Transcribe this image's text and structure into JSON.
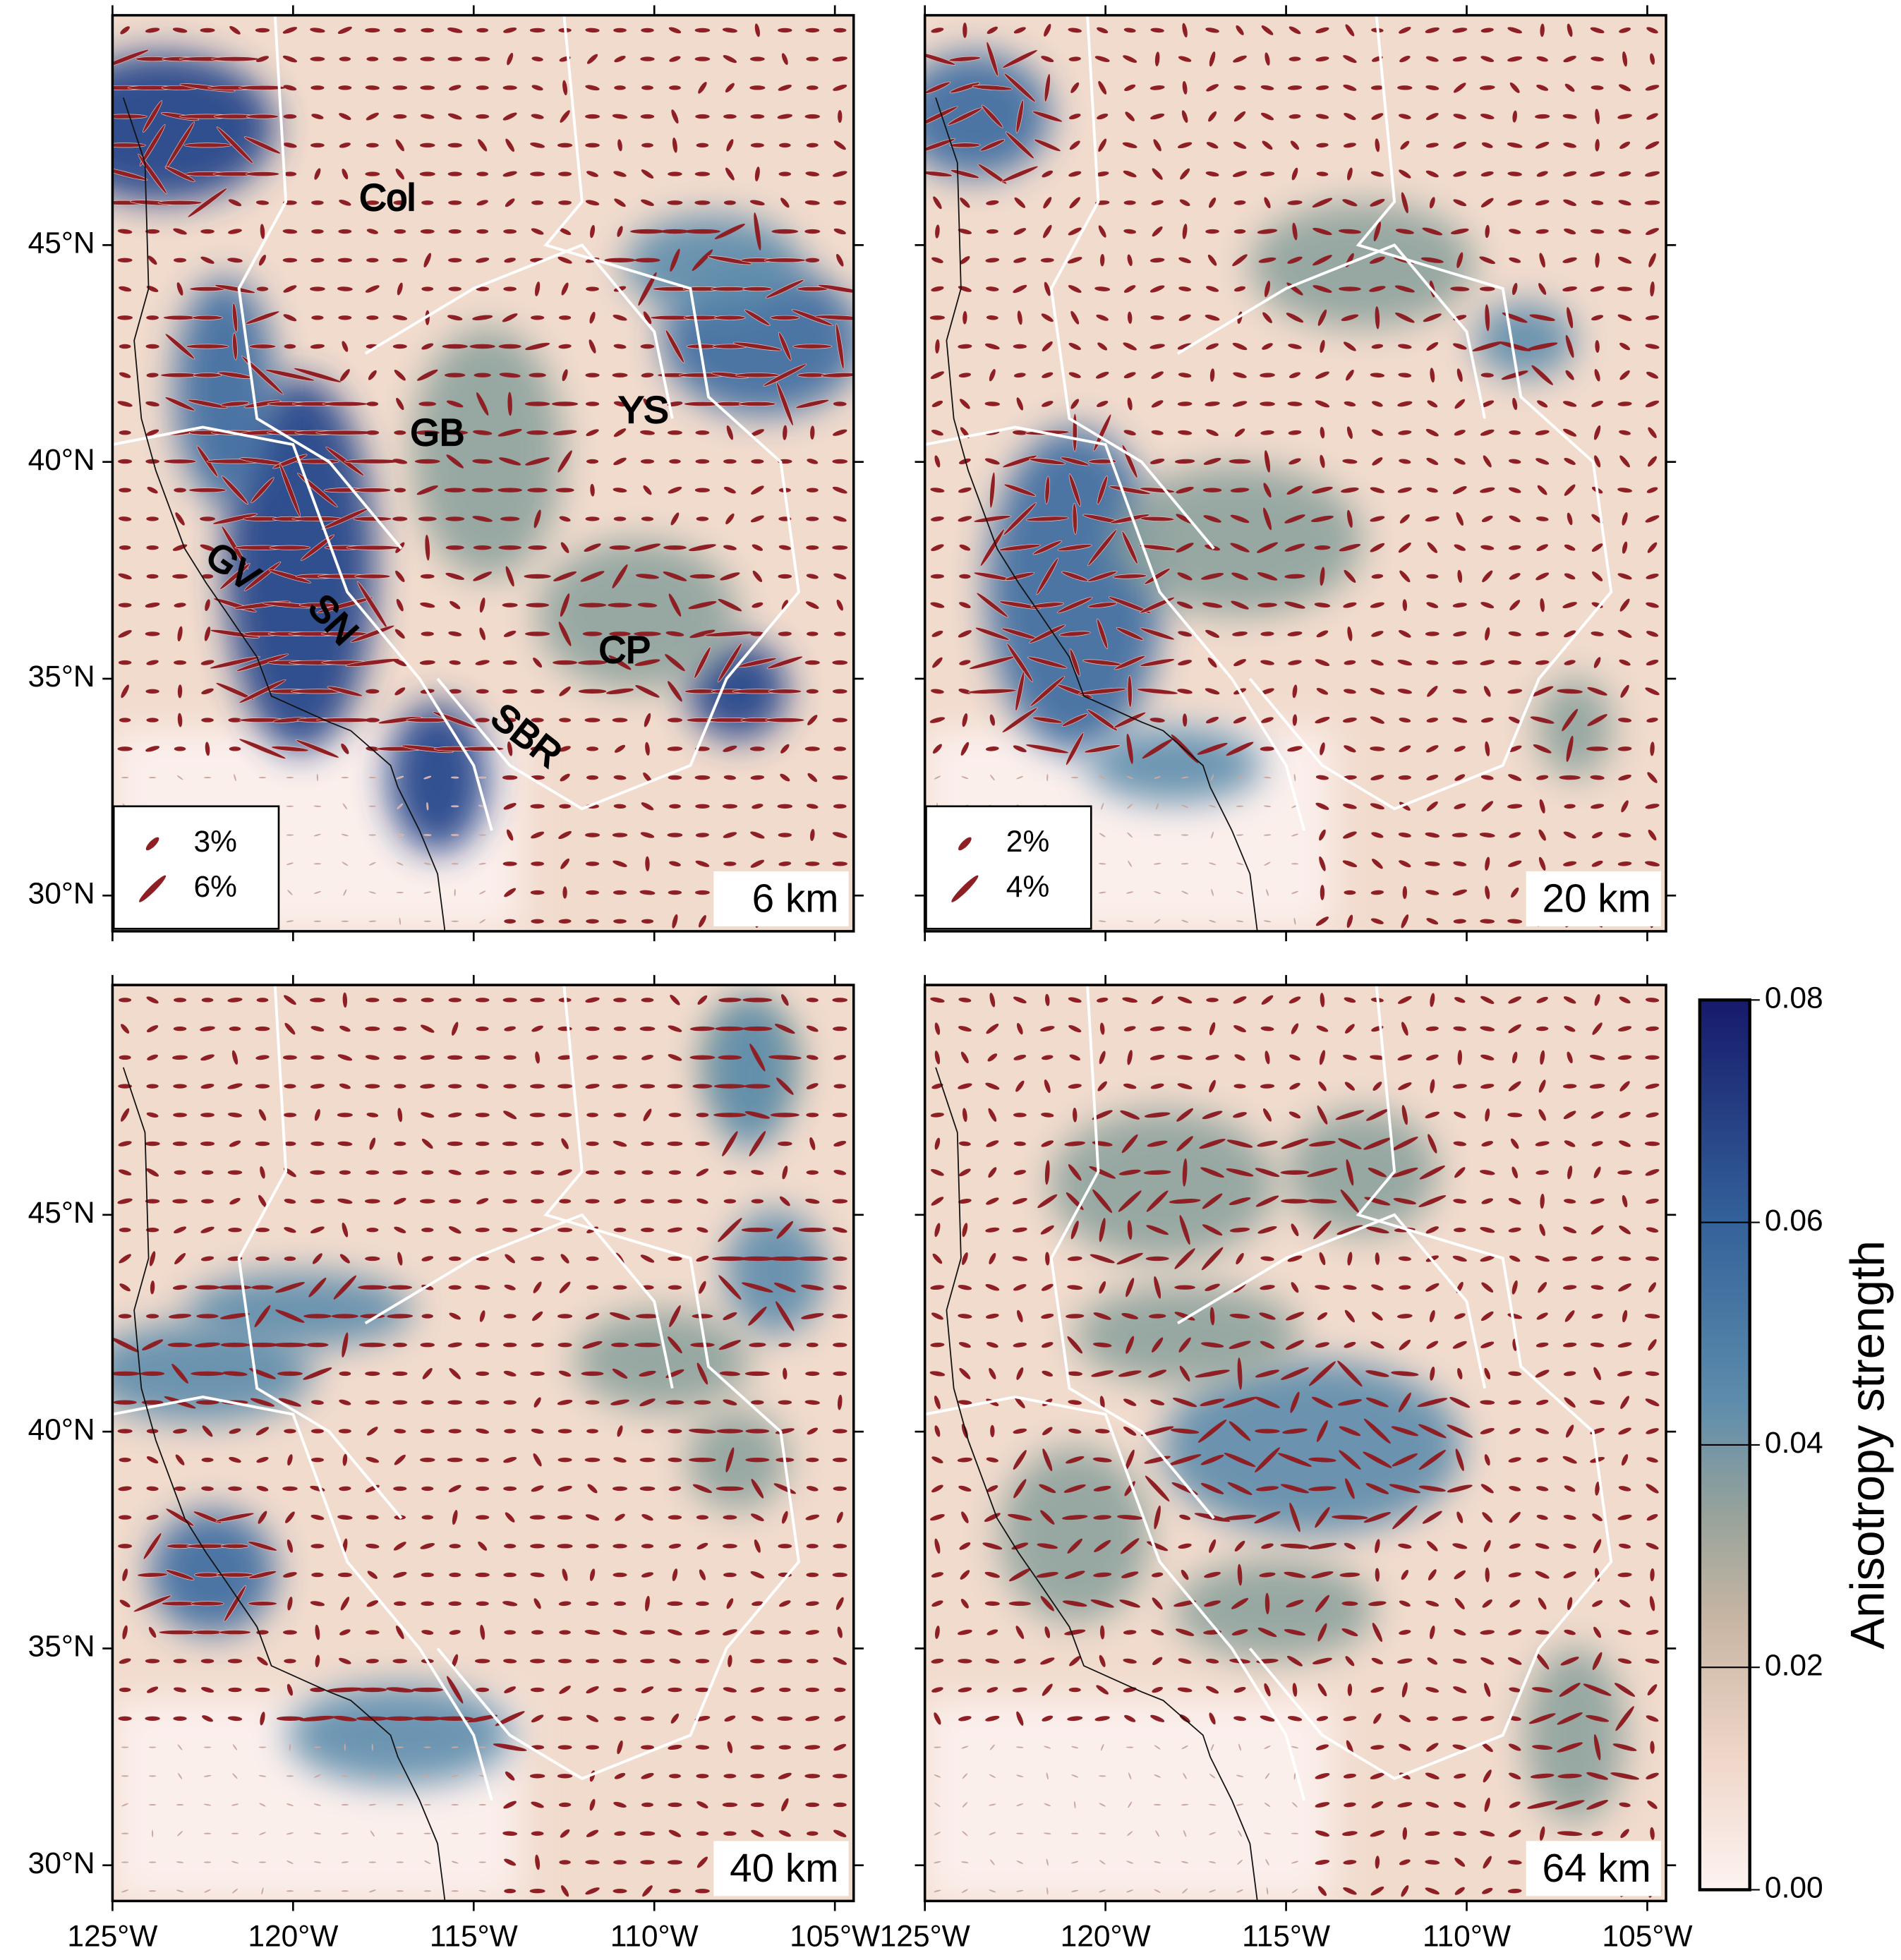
{
  "panels": [
    {
      "depth": "6 km",
      "legend": [
        "3%",
        "6%"
      ],
      "labels": [
        "Col",
        "GB",
        "YS",
        "GV",
        "SN",
        "CP",
        "SBR"
      ]
    },
    {
      "depth": "20 km",
      "legend": [
        "2%",
        "4%"
      ]
    },
    {
      "depth": "40 km"
    },
    {
      "depth": "64 km"
    }
  ],
  "axes": {
    "lon_ticks": [
      {
        "value": -125,
        "label": "125°W"
      },
      {
        "value": -120,
        "label": "120°W"
      },
      {
        "value": -115,
        "label": "115°W"
      },
      {
        "value": -110,
        "label": "110°W"
      },
      {
        "value": -105,
        "label": "105°W"
      }
    ],
    "lat_ticks": [
      {
        "value": 30,
        "label": "30°N"
      },
      {
        "value": 35,
        "label": "35°N"
      },
      {
        "value": 40,
        "label": "40°N"
      },
      {
        "value": 45,
        "label": "45°N"
      }
    ]
  },
  "colorbar": {
    "title": "Anisotropy strength",
    "range": [
      0,
      0.08
    ],
    "ticks": [
      {
        "value": 0,
        "label": "0.00"
      },
      {
        "value": 0.02,
        "label": "0.02"
      },
      {
        "value": 0.04,
        "label": "0.04"
      },
      {
        "value": 0.06,
        "label": "0.06"
      },
      {
        "value": 0.08,
        "label": "0.08"
      }
    ]
  }
}
